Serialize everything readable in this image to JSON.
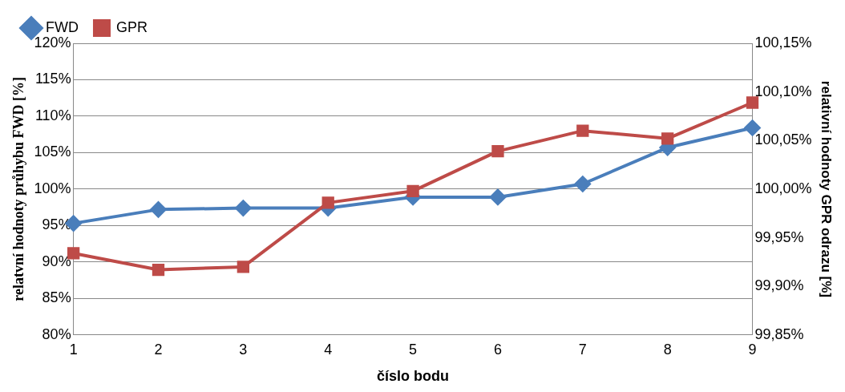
{
  "chart_data": {
    "type": "line",
    "xlabel": "číslo bodu",
    "ylabel": "relatvní hodnoty průhybu FWD [%]",
    "y2label": "relativní hodnoty GPR odrazu [%]",
    "categories": [
      "1",
      "2",
      "3",
      "4",
      "5",
      "6",
      "7",
      "8",
      "9"
    ],
    "series": [
      {
        "name": "FWD",
        "color": "#4a7ebb",
        "marker": "diamond",
        "values": [
          95.3,
          97.2,
          97.4,
          97.4,
          98.9,
          98.9,
          100.7,
          105.7,
          108.4
        ]
      },
      {
        "name": "GPR",
        "color": "#be4b48",
        "marker": "square",
        "axis": "y2",
        "values": [
          99.934,
          99.917,
          99.92,
          99.986,
          99.998,
          100.039,
          100.06,
          100.052,
          100.089
        ]
      }
    ],
    "ylim": [
      80,
      120
    ],
    "yticks": [
      {
        "value": 80,
        "label": "80%"
      },
      {
        "value": 85,
        "label": "85%"
      },
      {
        "value": 90,
        "label": "90%"
      },
      {
        "value": 95,
        "label": "95%"
      },
      {
        "value": 100,
        "label": "100%"
      },
      {
        "value": 105,
        "label": "105%"
      },
      {
        "value": 110,
        "label": "110%"
      },
      {
        "value": 115,
        "label": "115%"
      },
      {
        "value": 120,
        "label": "120%"
      }
    ],
    "y2lim": [
      99.85,
      100.15
    ],
    "y2ticks": [
      {
        "value": 99.85,
        "label": "99,85%"
      },
      {
        "value": 99.9,
        "label": "99,90%"
      },
      {
        "value": 99.95,
        "label": "99,95%"
      },
      {
        "value": 100,
        "label": "100,00%"
      },
      {
        "value": 100.05,
        "label": "100,05%"
      },
      {
        "value": 100.1,
        "label": "100,10%"
      },
      {
        "value": 100.15,
        "label": "100,15%"
      }
    ],
    "grid": "y",
    "legend": "top left",
    "line_style": "solid"
  }
}
